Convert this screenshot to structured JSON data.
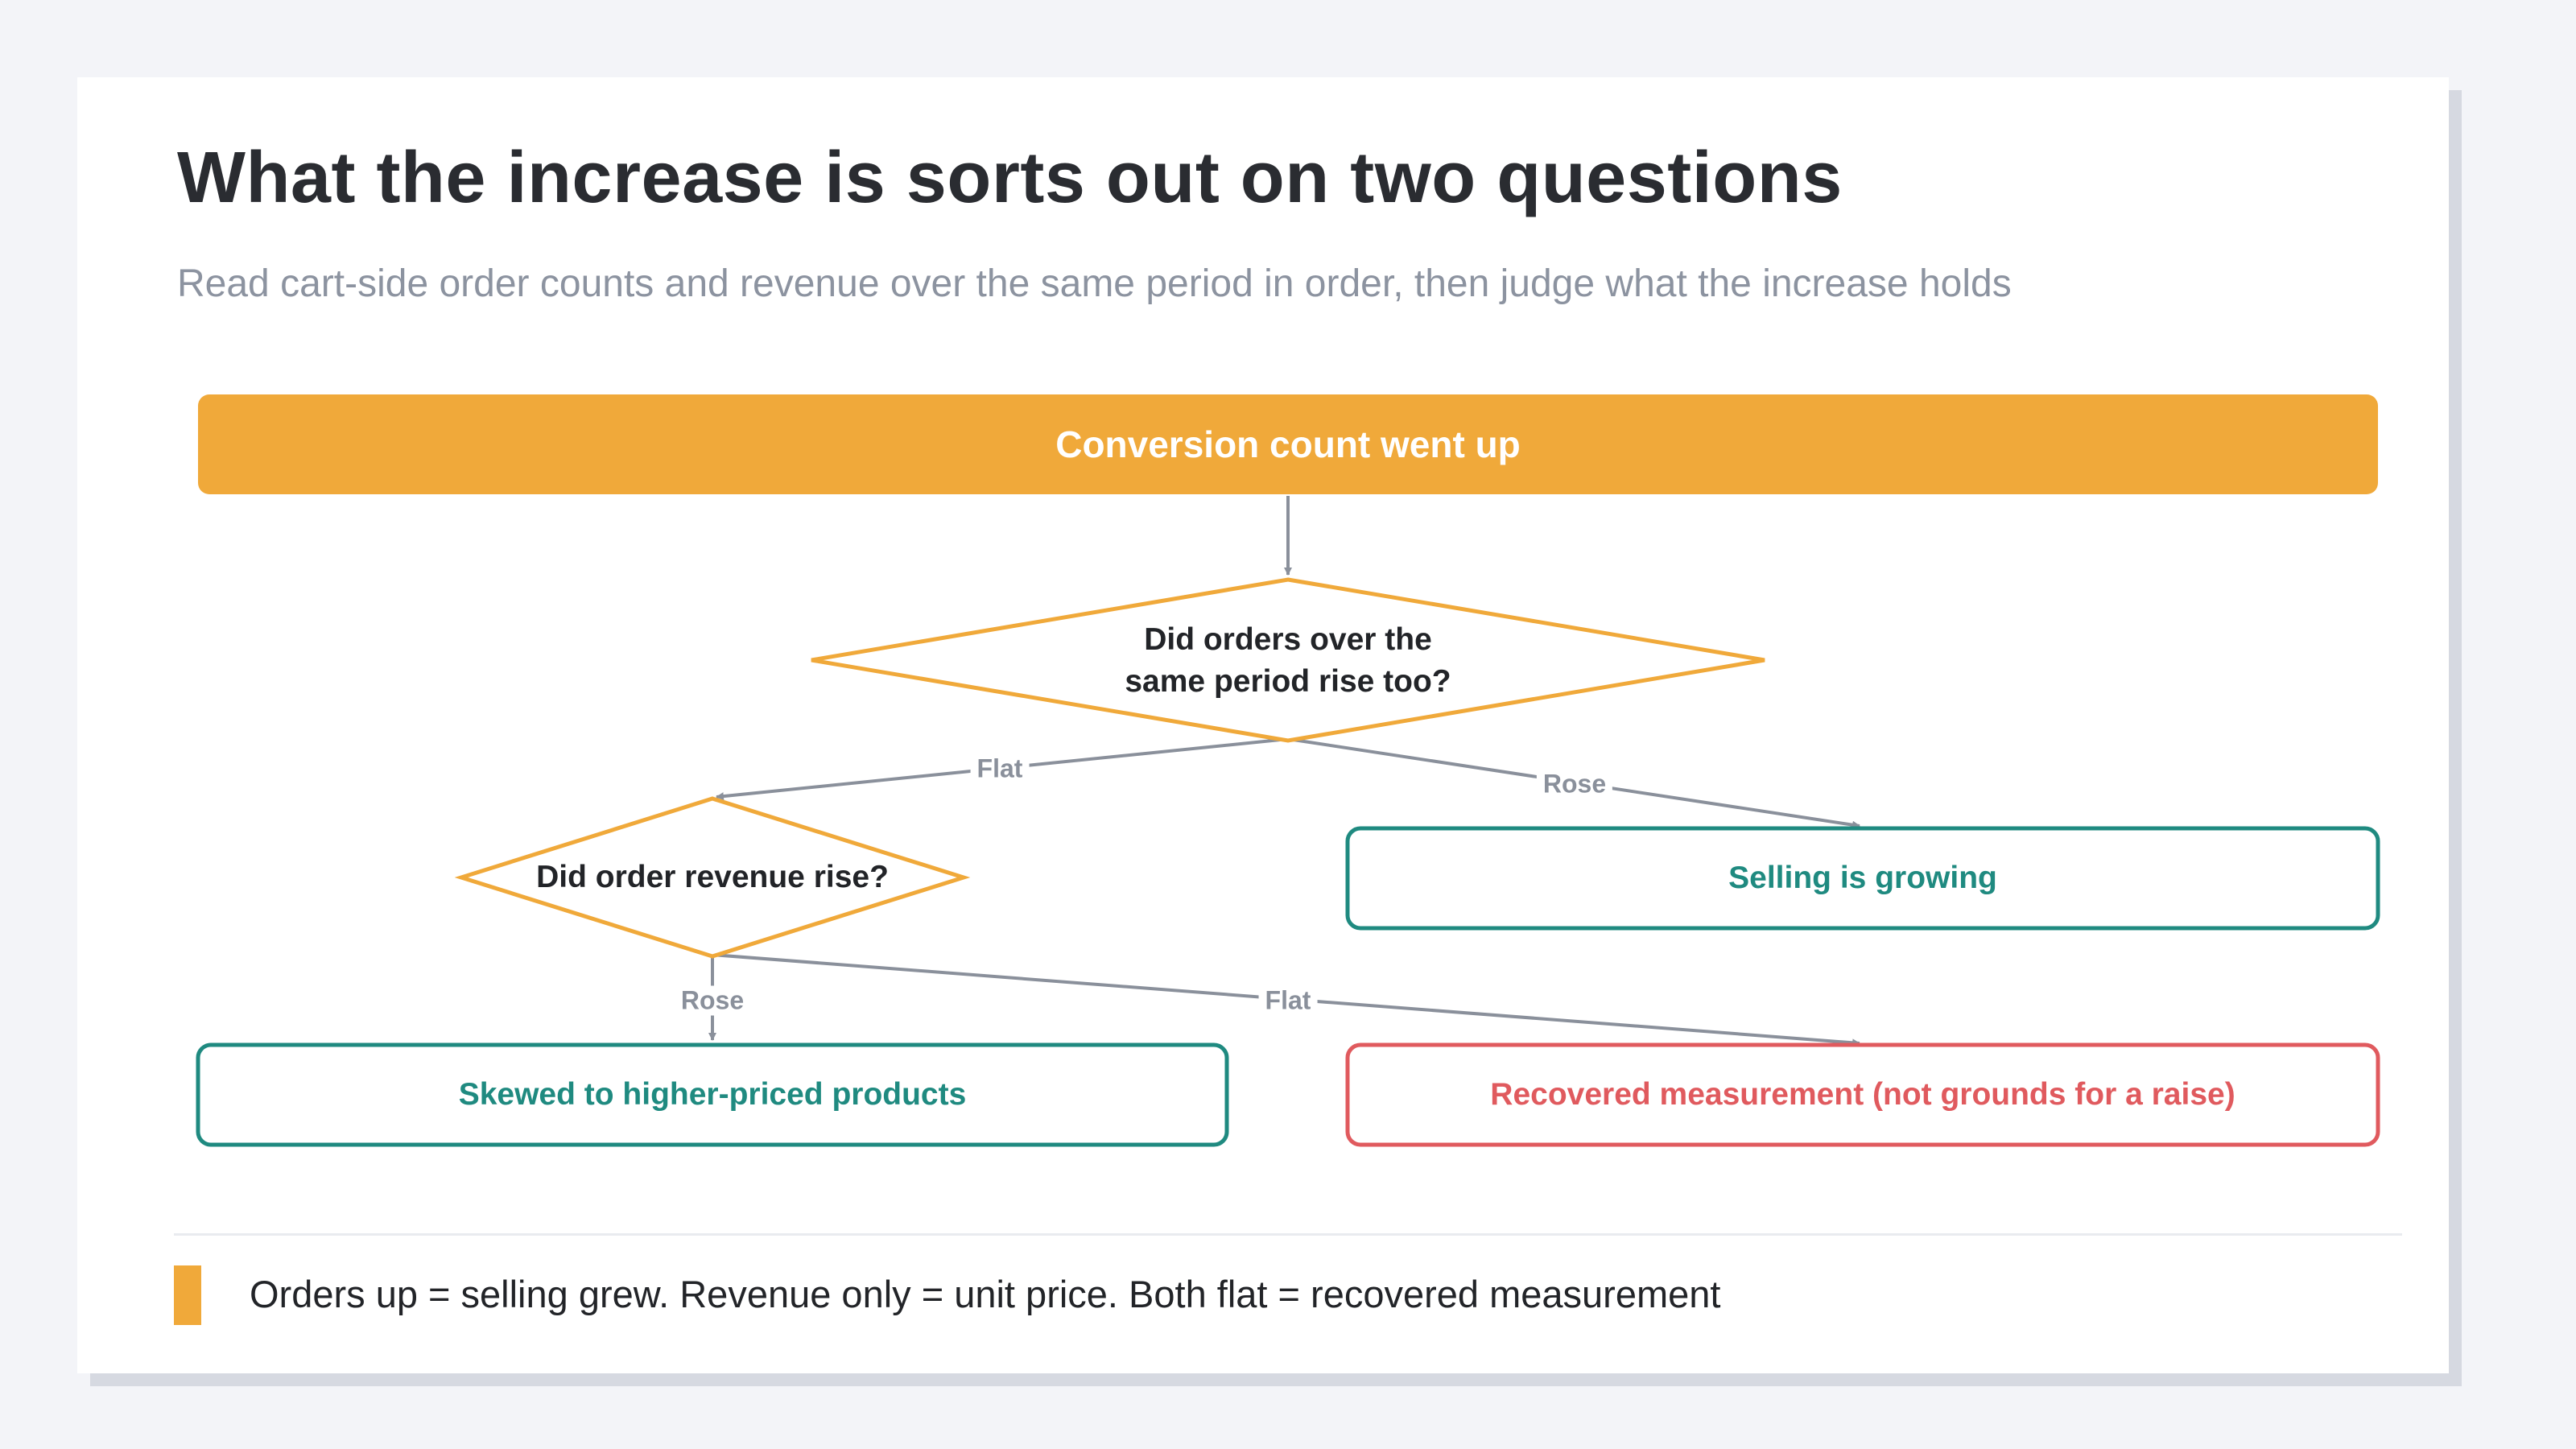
{
  "header": {
    "title": "What the increase is sorts out on two questions",
    "subtitle": "Read cart-side order counts and revenue over the same period in order, then judge what the increase holds"
  },
  "flowchart": {
    "start": "Conversion count went up",
    "question1_line1": "Did orders over the",
    "question1_line2": "same period rise too?",
    "question2": "Did order revenue rise?",
    "outcome_growing": "Selling is growing",
    "outcome_skewed": "Skewed to higher-priced products",
    "outcome_recovered": "Recovered measurement (not grounds for a raise)",
    "edge_q1_flat": "Flat",
    "edge_q1_rose": "Rose",
    "edge_q2_rose": "Rose",
    "edge_q2_flat": "Flat"
  },
  "legend": {
    "text": "Orders up = selling grew. Revenue only = unit price. Both flat = recovered measurement"
  },
  "colors": {
    "accent_orange": "#f0a93a",
    "teal": "#1f8a80",
    "red": "#e05a5e",
    "connector_gray": "#8a909b"
  }
}
